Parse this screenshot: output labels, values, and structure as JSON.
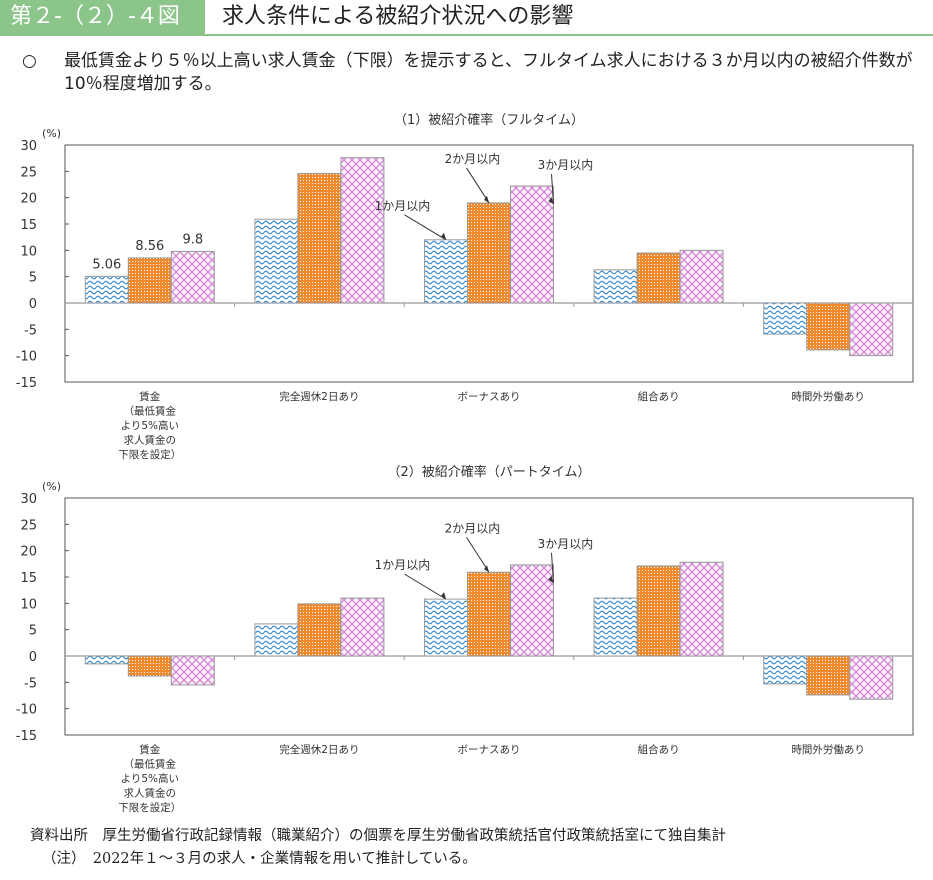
{
  "header": {
    "figure_number": "第２-（２）-４図",
    "title": "求人条件による被紹介状況への影響"
  },
  "lead": {
    "bullet": "○",
    "text": "最低賃金より５％以上高い求人賃金（下限）を提示すると、フルタイム求人における３か月以内の被紹介件数が10％程度増加する。"
  },
  "chart_data": [
    {
      "type": "bar",
      "title": "（1）被紹介確率（フルタイム）",
      "ylabel": "(%)",
      "ylim": [
        -15,
        30
      ],
      "yticks": [
        30,
        25,
        20,
        15,
        10,
        5,
        0,
        -5,
        -10,
        -15
      ],
      "categories": [
        "賃金\n（最低賃金\nより5%高い\n求人賃金の\n下限を設定）",
        "完全週休2日あり",
        "ボーナスあり",
        "組合あり",
        "時間外労働あり"
      ],
      "series": [
        {
          "name": "1か月以内",
          "color": "#3b8fd6",
          "values": [
            5.06,
            15.9,
            12.0,
            6.3,
            -5.9
          ]
        },
        {
          "name": "2か月以内",
          "color": "#f08a2c",
          "values": [
            8.56,
            24.6,
            19.0,
            9.5,
            -8.9
          ]
        },
        {
          "name": "3か月以内",
          "color": "#cf85cf",
          "values": [
            9.8,
            27.6,
            22.2,
            10.0,
            -10.0
          ]
        }
      ],
      "data_labels": [
        "5.06",
        "8.56",
        "9.8"
      ],
      "annotation_category": 2
    },
    {
      "type": "bar",
      "title": "（2）被紹介確率（パートタイム）",
      "ylabel": "(%)",
      "ylim": [
        -15,
        30
      ],
      "yticks": [
        30,
        25,
        20,
        15,
        10,
        5,
        0,
        -5,
        -10,
        -15
      ],
      "categories": [
        "賃金\n（最低賃金\nより5%高い\n求人賃金の\n下限を設定）",
        "完全週休2日あり",
        "ボーナスあり",
        "組合あり",
        "時間外労働あり"
      ],
      "series": [
        {
          "name": "1か月以内",
          "color": "#3b8fd6",
          "values": [
            -1.5,
            6.1,
            10.8,
            11.0,
            -5.3
          ]
        },
        {
          "name": "2か月以内",
          "color": "#f08a2c",
          "values": [
            -3.8,
            9.9,
            15.9,
            17.1,
            -7.4
          ]
        },
        {
          "name": "3か月以内",
          "color": "#cf85cf",
          "values": [
            -5.5,
            11.0,
            17.3,
            17.8,
            -8.2
          ]
        }
      ],
      "annotation_category": 2
    }
  ],
  "footer": {
    "source": "資料出所　厚生労働省行政記録情報（職業紹介）の個票を厚生労働省政策統括官付政策統括室にて独自集計",
    "note": "（注）　2022年１～３月の求人・企業情報を用いて推計している。"
  }
}
